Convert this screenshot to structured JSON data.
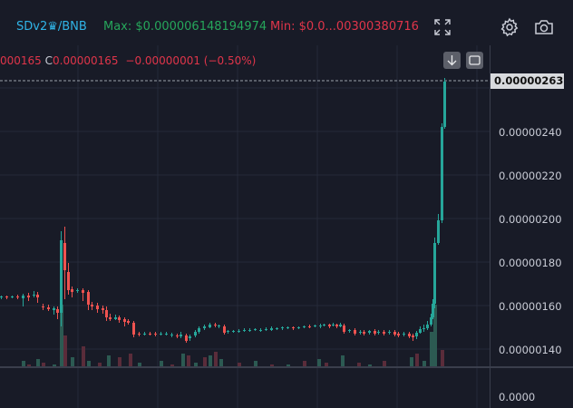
{
  "header": {
    "pair": "SDv2♛/BNB",
    "max": "Max: $0.000006148194974",
    "min": "Min: $0.0...00300380716"
  },
  "legend": {
    "open_partial": "000165",
    "close_label": "C",
    "close_value": "0.00000165",
    "change": "−0.00000001 (−0.50%)"
  },
  "icons": [
    "fullscreen-icon",
    "settings-icon",
    "camera-icon",
    "scroll-down-icon",
    "fit-screen-icon"
  ],
  "price_axis": {
    "ticks": [
      "0.00000240",
      "0.00000220",
      "0.00000200",
      "0.00000180",
      "0.00000160",
      "0.00000140"
    ],
    "current": "0.00000263"
  },
  "volume_axis": {
    "tick": "0.0000"
  },
  "colors": {
    "up": "#26a69a",
    "down": "#ef5350",
    "accent": "#30b3e6",
    "max": "#26a65b",
    "min": "#e0354a"
  }
}
